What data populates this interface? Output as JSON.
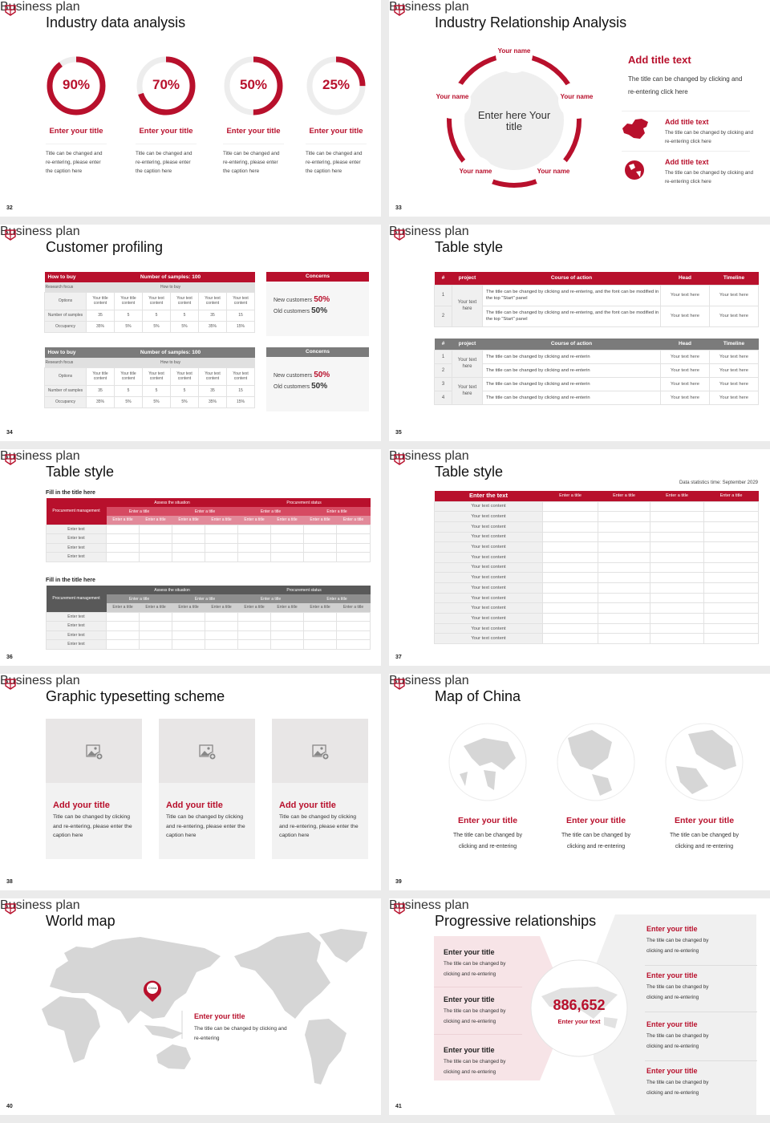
{
  "deck": {
    "side_label": "Business plan",
    "accent": "#b8102c",
    "gray_header": "#7b7b7b",
    "logo": "crest-logo"
  },
  "s32": {
    "page": "32",
    "title": "Industry data analysis",
    "items": [
      {
        "percent": 90,
        "label": "90%",
        "title": "Enter your title",
        "caption": "Title can be changed and re-entering, please enter the caption here"
      },
      {
        "percent": 70,
        "label": "70%",
        "title": "Enter your title",
        "caption": "Title can be changed and re-entering, please enter the caption here"
      },
      {
        "percent": 50,
        "label": "50%",
        "title": "Enter your title",
        "caption": "Title can be changed and re-entering, please enter the caption here"
      },
      {
        "percent": 25,
        "label": "25%",
        "title": "Enter your title",
        "caption": "Title can be changed and re-entering, please enter the caption here"
      }
    ]
  },
  "s33": {
    "page": "33",
    "title": "Industry Relationship Analysis",
    "center": "Enter here Your title",
    "names": [
      "Your name",
      "Your name",
      "Your name",
      "Your name",
      "Your name"
    ],
    "main_title": "Add title text",
    "main_text": "The title can be changed by clicking and re-entering click here",
    "items": [
      {
        "icon": "china-map-icon",
        "title": "Add title text",
        "text": "The title can be changed by clicking and re-entering click here"
      },
      {
        "icon": "globe-icon",
        "title": "Add title text",
        "text": "The title can be changed by clicking and re-entering click here"
      }
    ]
  },
  "s34": {
    "page": "34",
    "title": "Customer profiling",
    "tables": [
      {
        "theme": "red",
        "header_left": "How to buy",
        "header_center": "Number of samples: 100",
        "focus_label": "Research focus",
        "focus_value": "How to buy",
        "rows": [
          {
            "label": "Options",
            "cells": [
              "Your title content",
              "Your title content",
              "Your text content",
              "Your text content",
              "Your text content",
              "Your text content"
            ]
          },
          {
            "label": "Number of samples",
            "cells": [
              "35",
              "5",
              "5",
              "5",
              "35",
              "15"
            ]
          },
          {
            "label": "Occupancy",
            "cells": [
              "35%",
              "5%",
              "5%",
              "5%",
              "35%",
              "15%"
            ]
          }
        ],
        "concerns": {
          "title": "Concerns",
          "new_label": "New customers",
          "new_value": "50%",
          "old_label": "Old customers",
          "old_value": "50%"
        }
      },
      {
        "theme": "gray",
        "header_left": "How to buy",
        "header_center": "Number of samples: 100",
        "focus_label": "Research focus",
        "focus_value": "How to buy",
        "rows": [
          {
            "label": "Options",
            "cells": [
              "Your title content",
              "Your title content",
              "Your text content",
              "Your text content",
              "Your text content",
              "Your text content"
            ]
          },
          {
            "label": "Number of samples",
            "cells": [
              "35",
              "5",
              "5",
              "5",
              "35",
              "15"
            ]
          },
          {
            "label": "Occupancy",
            "cells": [
              "35%",
              "5%",
              "5%",
              "5%",
              "35%",
              "15%"
            ]
          }
        ],
        "concerns": {
          "title": "Concerns",
          "new_label": "New customers",
          "new_value": "50%",
          "old_label": "Old customers",
          "old_value": "50%"
        }
      }
    ]
  },
  "s35": {
    "page": "35",
    "title": "Table style",
    "tables": [
      {
        "theme": "red",
        "headers": [
          "#",
          "project",
          "Course of action",
          "Head",
          "Timeline"
        ],
        "groups": [
          {
            "project": "Your text here",
            "rows": [
              {
                "num": "1",
                "action": "The title can be changed by clicking and re-entering, and the font can be modified in the top \"Start\" panel",
                "head": "Your text here",
                "timeline": "Your text here"
              },
              {
                "num": "2",
                "action": "The title can be changed by clicking and re-entering, and the font can be modified in the top \"Start\" panel",
                "head": "Your text here",
                "timeline": "Your text here"
              }
            ]
          }
        ]
      },
      {
        "theme": "gray",
        "headers": [
          "#",
          "project",
          "Course of action",
          "Head",
          "Timeline"
        ],
        "groups": [
          {
            "project": "Your text here",
            "rows": [
              {
                "num": "1",
                "action": "The title can be changed by clicking and re-enterin",
                "head": "Your text here",
                "timeline": "Your text here"
              },
              {
                "num": "2",
                "action": "The title can be changed by clicking and re-enterin",
                "head": "Your text here",
                "timeline": "Your text here"
              }
            ]
          },
          {
            "project": "Your text here",
            "rows": [
              {
                "num": "3",
                "action": "The title can be changed by clicking and re-enterin",
                "head": "Your text here",
                "timeline": "Your text here"
              },
              {
                "num": "4",
                "action": "The title can be changed by clicking and re-enterin",
                "head": "Your text here",
                "timeline": "Your text here"
              }
            ]
          }
        ]
      }
    ]
  },
  "s36": {
    "page": "36",
    "title": "Table style",
    "tables": [
      {
        "theme": "red",
        "title": "Fill in the title here",
        "corner": "Procurement management",
        "groups": [
          "Assess the situation",
          "Procurement status"
        ],
        "subgroups": [
          "Enter a title",
          "Enter a title",
          "Enter a title",
          "Enter a title"
        ],
        "columns": [
          "Enter a title",
          "Enter a title",
          "Enter a title",
          "Enter a title",
          "Enter a title",
          "Enter a title",
          "Enter a title",
          "Enter a title"
        ],
        "rows": [
          "Enter text",
          "Enter text",
          "Enter text",
          "Enter text"
        ]
      },
      {
        "theme": "gray",
        "title": "Fill in the title here",
        "corner": "Procurement management",
        "groups": [
          "Assess the situation",
          "Procurement status"
        ],
        "subgroups": [
          "Enter a title",
          "Enter a title",
          "Enter a title",
          "Enter a title"
        ],
        "columns": [
          "Enter a title",
          "Enter a title",
          "Enter a title",
          "Enter a title",
          "Enter a title",
          "Enter a title",
          "Enter a title",
          "Enter a title"
        ],
        "rows": [
          "Enter text",
          "Enter text",
          "Enter text",
          "Enter text"
        ]
      }
    ]
  },
  "s37": {
    "page": "37",
    "title": "Table style",
    "note": "Data statistics time: September 2029",
    "headers": [
      "Enter the text",
      "Enter a title",
      "Enter a title",
      "Enter a title",
      "Enter a title"
    ],
    "rows": [
      "Your text content",
      "Your text content",
      "Your text content",
      "Your text content",
      "Your text content",
      "Your text content",
      "Your text content",
      "Your text content",
      "Your text content",
      "Your text content",
      "Your text content",
      "Your text content",
      "Your text content",
      "Your text content"
    ]
  },
  "s38": {
    "page": "38",
    "title": "Graphic typesetting scheme",
    "cards": [
      {
        "icon": "add-image-icon",
        "title": "Add your title",
        "text": "Title can be changed by clicking and re-entering, please enter the caption here"
      },
      {
        "icon": "add-image-icon",
        "title": "Add your title",
        "text": "Title can be changed by clicking and re-entering, please enter the caption here"
      },
      {
        "icon": "add-image-icon",
        "title": "Add your title",
        "text": "Title can be changed by clicking and re-entering, please enter the caption here"
      }
    ]
  },
  "s39": {
    "page": "39",
    "title": "Map of China",
    "items": [
      {
        "icon": "globe-icon",
        "title": "Enter your title",
        "text": "The title can be changed by clicking and re-entering"
      },
      {
        "icon": "globe-icon",
        "title": "Enter your title",
        "text": "The title can be changed by clicking and re-entering"
      },
      {
        "icon": "globe-icon",
        "title": "Enter your title",
        "text": "The title can be changed by clicking and re-entering"
      }
    ]
  },
  "s40": {
    "page": "40",
    "title": "World map",
    "pin_label": "China",
    "callout_title": "Enter your title",
    "callout_text": "The title can be changed by clicking and re-entering"
  },
  "s41": {
    "page": "41",
    "title": "Progressive relationships",
    "number": "886,652",
    "number_label": "Enter your text",
    "left": [
      {
        "title": "Enter your title",
        "text": "The title can be changed by clicking and re-entering"
      },
      {
        "title": "Enter your title",
        "text": "The title can be changed by clicking and re-entering"
      },
      {
        "title": "Enter your title",
        "text": "The title can be changed by clicking and re-entering"
      }
    ],
    "right": [
      {
        "title": "Enter your title",
        "text": "The title can be changed by clicking and re-entering"
      },
      {
        "title": "Enter your title",
        "text": "The title can be changed by clicking and re-entering"
      },
      {
        "title": "Enter your title",
        "text": "The title can be changed by clicking and re-entering"
      },
      {
        "title": "Enter your title",
        "text": "The title can be changed by clicking and re-entering"
      }
    ]
  }
}
